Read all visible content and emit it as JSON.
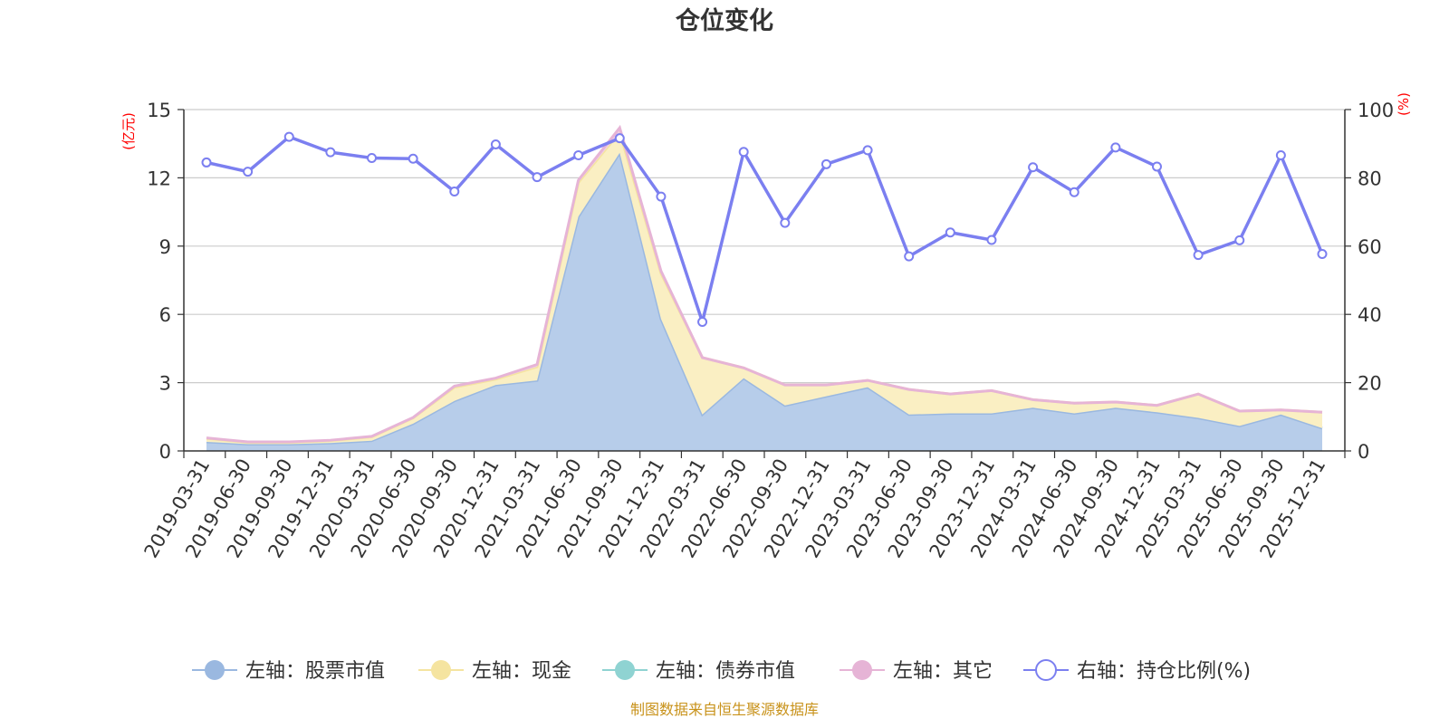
{
  "chart_data": {
    "type": "area",
    "title": "仓位变化",
    "left_unit": "(亿元)",
    "right_unit": "(%)",
    "left_ylim": [
      0,
      15
    ],
    "left_ticks": [
      "0",
      "3",
      "6",
      "9",
      "12",
      "15"
    ],
    "right_ylim": [
      0,
      100
    ],
    "right_ticks": [
      "0",
      "20",
      "40",
      "60",
      "80",
      "100"
    ],
    "categories": [
      "2019-03-31",
      "2019-06-30",
      "2019-09-30",
      "2019-12-31",
      "2020-03-31",
      "2020-06-30",
      "2020-09-30",
      "2020-12-31",
      "2021-03-31",
      "2021-06-30",
      "2021-09-30",
      "2021-12-31",
      "2022-03-31",
      "2022-06-30",
      "2022-09-30",
      "2022-12-31",
      "2023-03-31",
      "2023-06-30",
      "2023-09-30",
      "2023-12-31",
      "2024-03-31",
      "2024-06-30",
      "2024-09-30",
      "2024-12-31",
      "2025-03-31",
      "2025-06-30",
      "2025-09-30",
      "2025-12-31"
    ],
    "series": [
      {
        "name": "左轴：股票市值",
        "axis": "left",
        "color": "#9ab8e0",
        "fill": "#b7cdea",
        "values": [
          0.4,
          0.3,
          0.3,
          0.35,
          0.45,
          1.2,
          2.2,
          2.9,
          3.1,
          10.3,
          13.1,
          5.8,
          1.6,
          3.2,
          2.0,
          2.4,
          2.8,
          1.6,
          1.65,
          1.65,
          1.9,
          1.65,
          1.9,
          1.7,
          1.45,
          1.1,
          1.6,
          1.0
        ]
      },
      {
        "name": "左轴：现金",
        "axis": "left",
        "color": "#f5e4a0",
        "fill": "#faefc3",
        "values": [
          0.15,
          0.08,
          0.08,
          0.1,
          0.17,
          0.25,
          0.6,
          0.25,
          0.6,
          1.5,
          0.9,
          2.0,
          2.5,
          0.45,
          0.9,
          0.5,
          0.3,
          1.1,
          0.85,
          1.0,
          0.35,
          0.45,
          0.25,
          0.3,
          1.05,
          0.65,
          0.2,
          0.7
        ]
      },
      {
        "name": "左轴：债券市值",
        "axis": "left",
        "color": "#8fd3d2",
        "fill": "#8fd3d2",
        "values": [
          0,
          0,
          0,
          0,
          0,
          0,
          0,
          0,
          0,
          0,
          0,
          0,
          0,
          0,
          0,
          0,
          0,
          0,
          0,
          0,
          0,
          0,
          0,
          0,
          0,
          0,
          0,
          0
        ]
      },
      {
        "name": "左轴：其它",
        "axis": "left",
        "color": "#e6b4d6",
        "fill": "#f0cfe5",
        "values": [
          0.02,
          0.02,
          0.02,
          0.02,
          0.02,
          0.02,
          0.05,
          0.05,
          0.1,
          0.1,
          0.2,
          0.1,
          0.0,
          0.0,
          0.0,
          0.0,
          0.0,
          0.0,
          0.0,
          0.0,
          0.0,
          0.0,
          0.0,
          0.0,
          0.0,
          0.0,
          0.0,
          0.0
        ]
      },
      {
        "name": "右轴：持仓比例(%)",
        "axis": "right",
        "color": "#7b7ff0",
        "values": [
          84.5,
          81.8,
          92.0,
          87.5,
          85.8,
          85.6,
          76.0,
          89.8,
          80.2,
          86.6,
          91.6,
          74.5,
          37.8,
          87.6,
          66.8,
          84.0,
          88.1,
          57.0,
          64.0,
          61.8,
          83.1,
          75.8,
          88.9,
          83.3,
          57.4,
          61.7,
          86.6,
          57.7
        ]
      }
    ],
    "legend_position": "bottom",
    "grid": true
  },
  "source_note": "制图数据来自恒生聚源数据库"
}
